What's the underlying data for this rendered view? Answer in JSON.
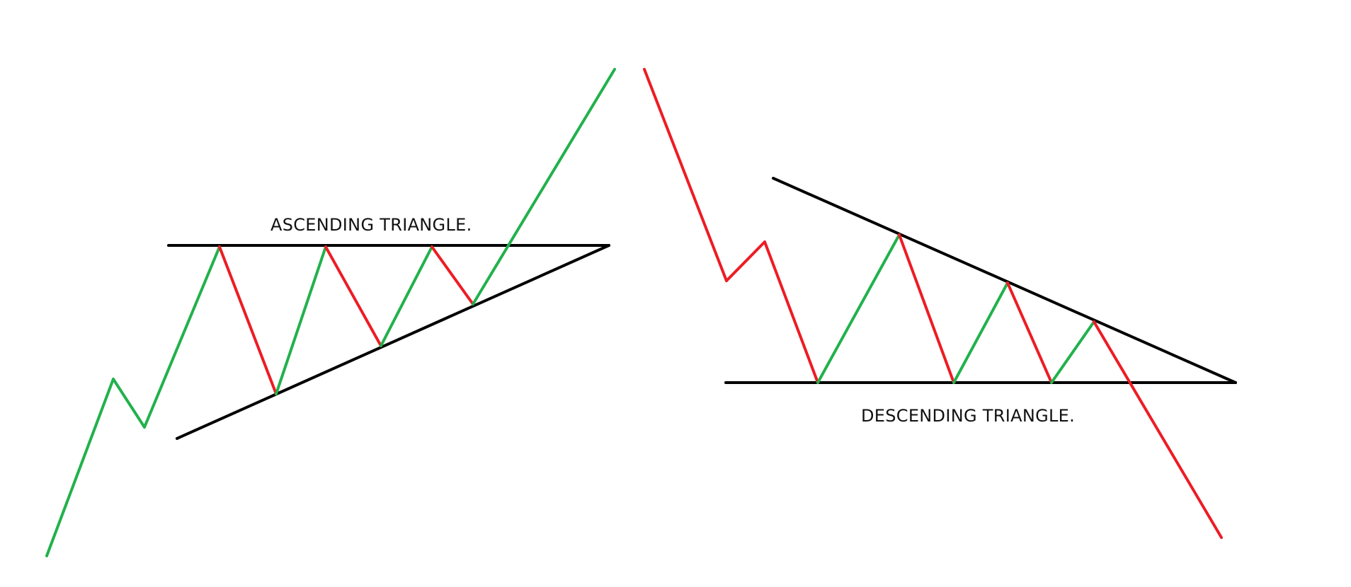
{
  "diagrams": {
    "ascending": {
      "label": "ASCENDING TRIANGLE."
    },
    "descending": {
      "label": "DESCENDING TRIANGLE."
    }
  },
  "colors": {
    "up_move": "#22b14c",
    "down_move": "#ed1c24",
    "trendline": "#000000",
    "background": "#ffffff"
  }
}
